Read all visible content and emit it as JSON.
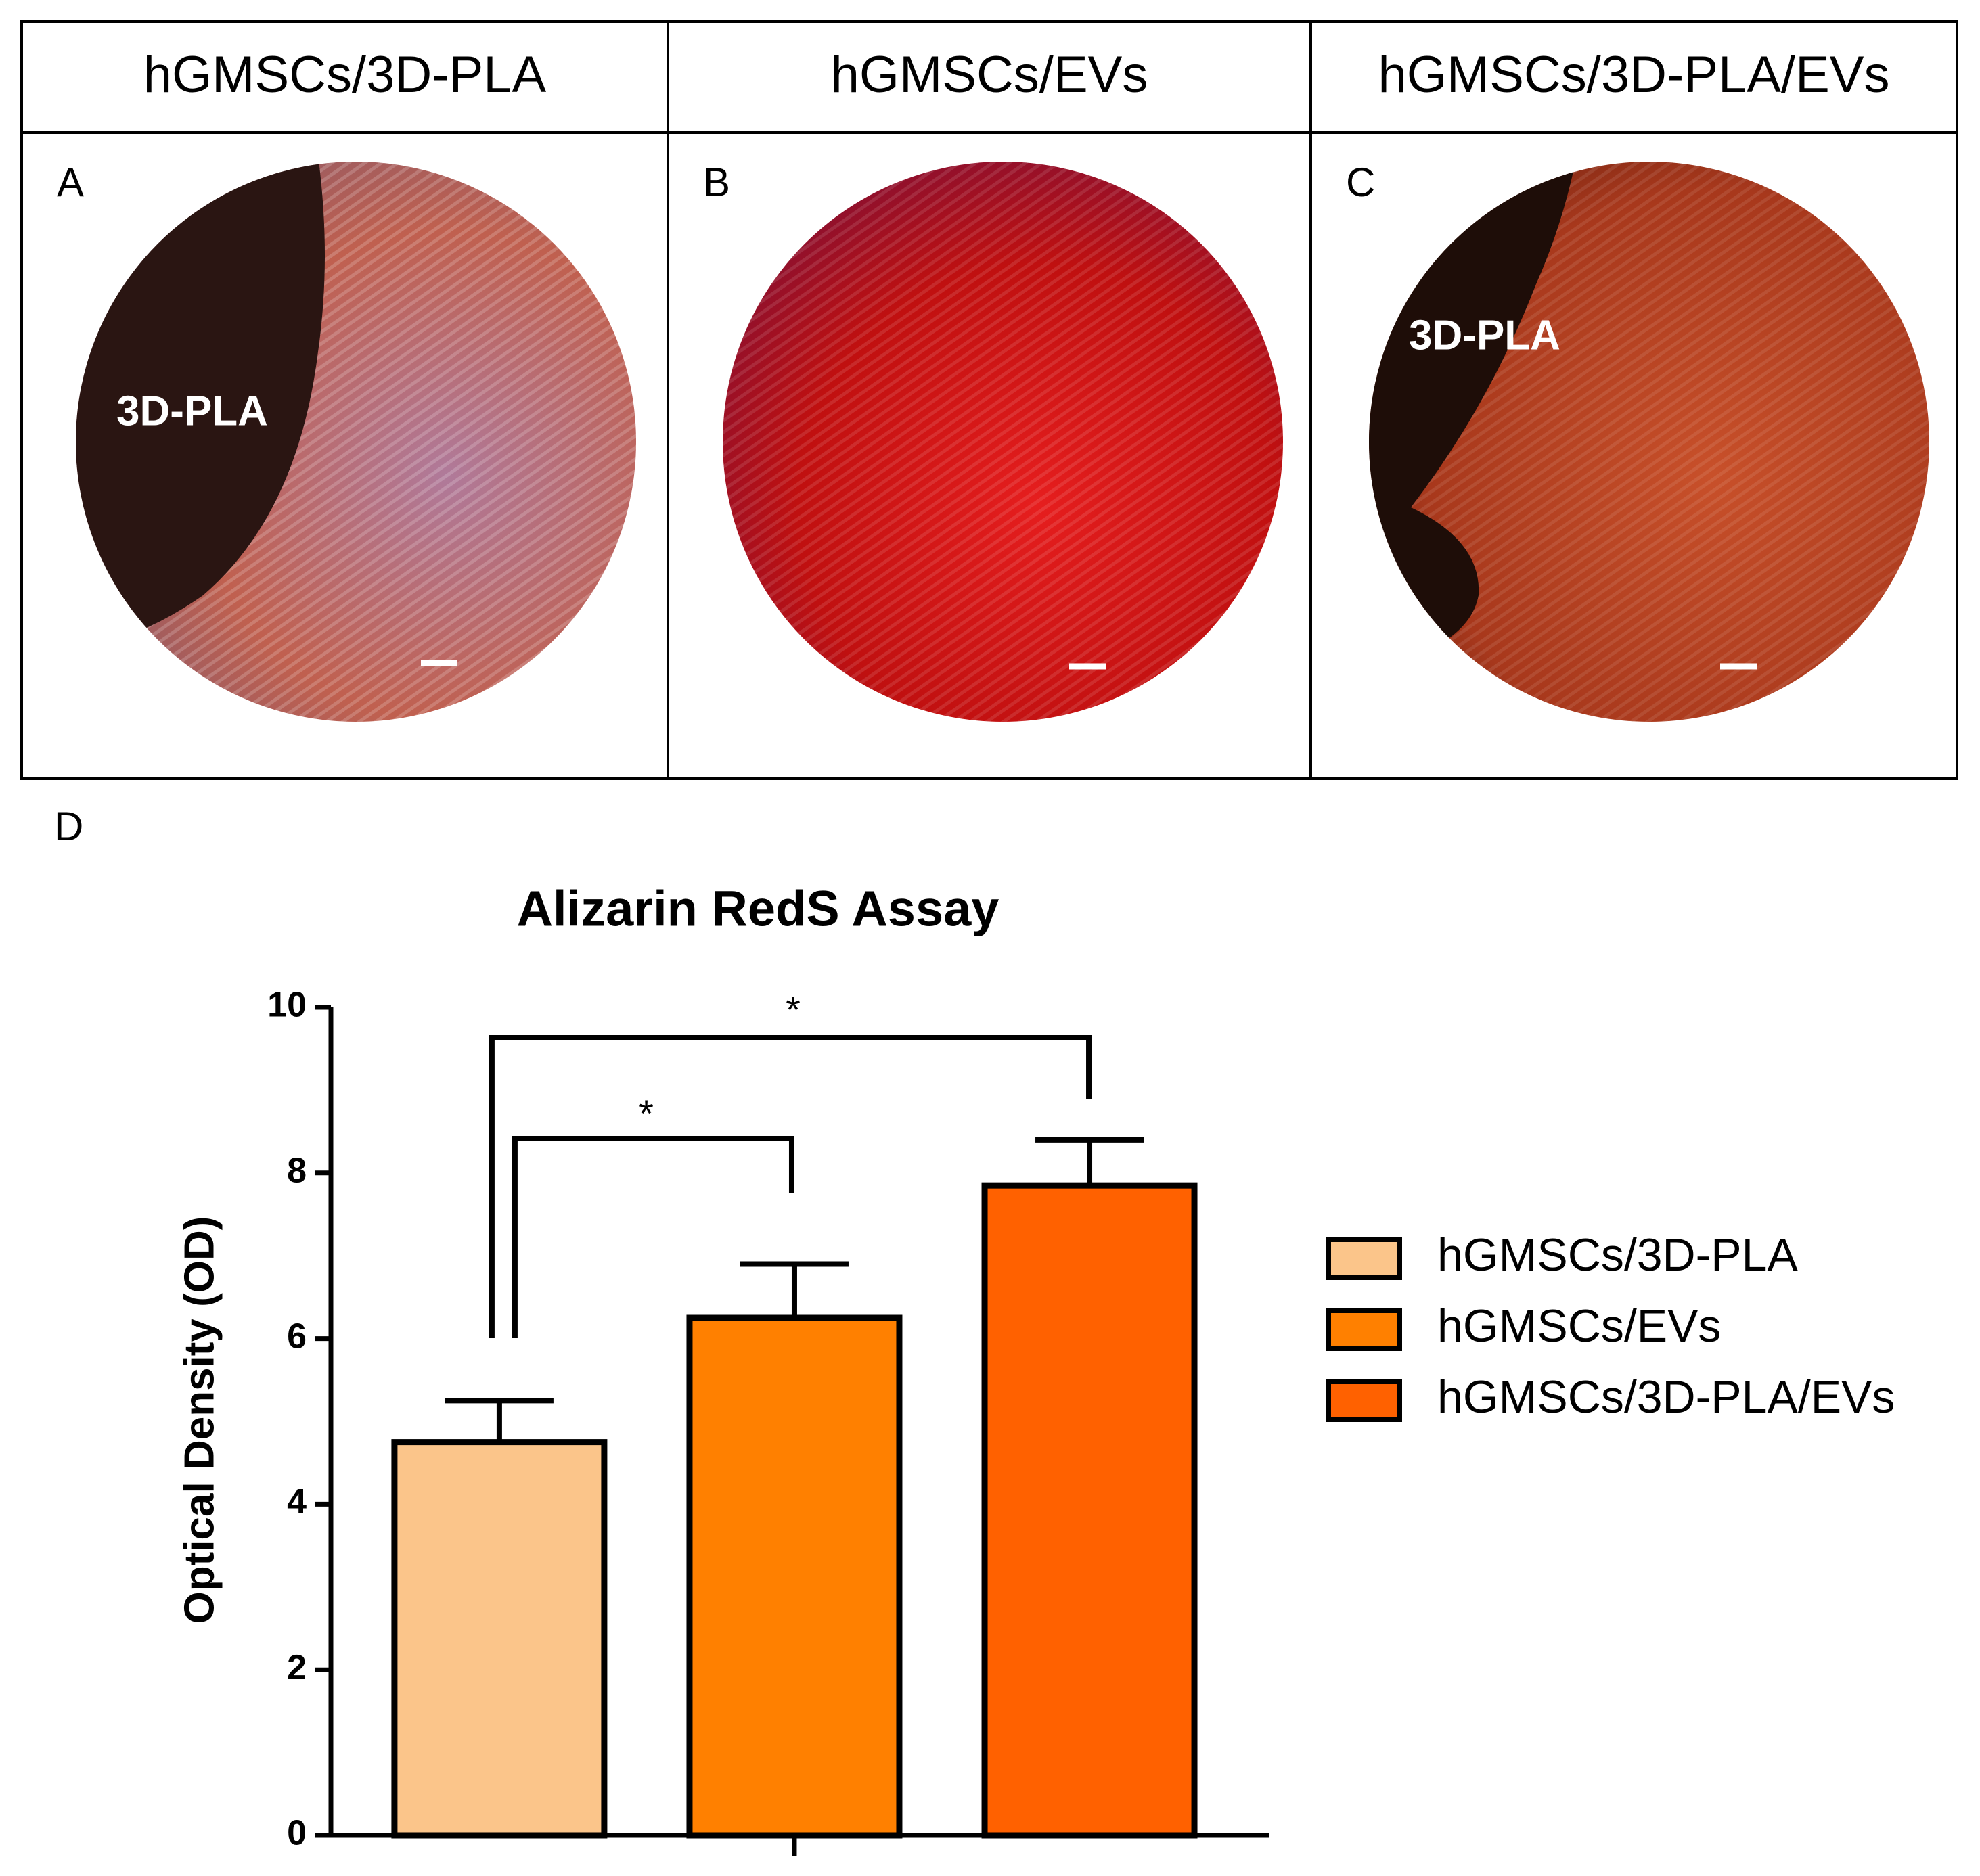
{
  "panels": [
    {
      "header": "hGMSCs/3D-PLA",
      "letter": "A",
      "label": "3D-PLA"
    },
    {
      "header": "hGMSCs/EVs",
      "letter": "B"
    },
    {
      "header": "hGMSCs/3D-PLA/EVs",
      "letter": "C",
      "label": "3D-PLA"
    }
  ],
  "chart_letter": "D",
  "chart_data": {
    "type": "bar",
    "title": "Alizarin RedS Assay",
    "y_label": "Optical Density (OD)",
    "categories": [
      null
    ],
    "series": [
      {
        "name": "hGMSCs/3D-PLA",
        "color": "#fbc58a",
        "values": [
          4.75
        ],
        "errors": [
          0.5
        ]
      },
      {
        "name": "hGMSCs/EVs",
        "color": "#ff8000",
        "values": [
          6.25
        ],
        "errors": [
          0.65
        ]
      },
      {
        "name": "hGMSCs/3D-PLA/EVs",
        "color": "#ff6100",
        "values": [
          7.85
        ],
        "errors": [
          0.55
        ]
      }
    ],
    "ylim": [
      0,
      10
    ],
    "yticks": [
      0,
      2,
      4,
      6,
      8,
      10
    ],
    "annotations": [
      "*",
      "*"
    ]
  }
}
